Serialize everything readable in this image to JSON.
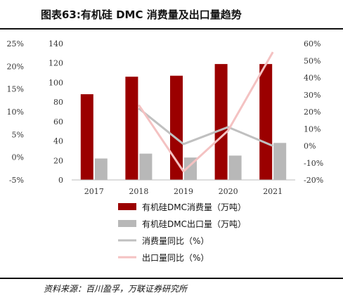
{
  "title": "图表63:有机硅 DMC 消费量及出口量趋势",
  "source": "资料来源：百川盈孚，万联证券研究所",
  "colors": {
    "consumption": "#9b0000",
    "export": "#b8b8b8",
    "consumption_yoy": "#c0c0c0",
    "export_yoy": "#f4c2c2"
  },
  "chart_data": {
    "type": "bar",
    "categories": [
      "2017",
      "2018",
      "2019",
      "2020",
      "2021"
    ],
    "series": [
      {
        "name": "有机硅DMC消费量（万吨）",
        "type": "bar",
        "axis": "left",
        "values": [
          88,
          106,
          107,
          119,
          119
        ]
      },
      {
        "name": "有机硅DMC出口量（万吨）",
        "type": "bar",
        "axis": "left",
        "values": [
          22,
          27,
          23,
          25,
          38
        ]
      },
      {
        "name": "消费量同比（%）",
        "type": "line",
        "axis": "right",
        "values": [
          null,
          22,
          1,
          11,
          0
        ]
      },
      {
        "name": "出口量同比（%）",
        "type": "line",
        "axis": "right",
        "values": [
          null,
          24,
          -15,
          9,
          55
        ]
      }
    ],
    "ylim_left": [
      0,
      140
    ],
    "yticks_left": [
      "0",
      "20",
      "40",
      "60",
      "80",
      "100",
      "120",
      "140"
    ],
    "ylim_right": [
      -20,
      60
    ],
    "yticks_right": [
      "-20%",
      "-10%",
      "0%",
      "10%",
      "20%",
      "30%",
      "40%",
      "50%",
      "60%"
    ],
    "outer_axis_ticks": [
      "-5%",
      "0%",
      "5%",
      "10%",
      "15%",
      "20%",
      "25%"
    ],
    "legend_position": "bottom"
  }
}
